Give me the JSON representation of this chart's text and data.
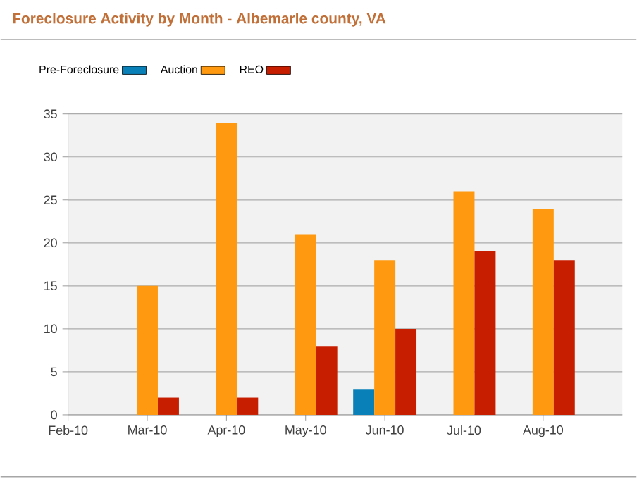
{
  "chart_data": {
    "type": "bar",
    "title": "Foreclosure Activity by Month - Albemarle county, VA",
    "categories": [
      "Feb-10",
      "Mar-10",
      "Apr-10",
      "May-10",
      "Jun-10",
      "Jul-10",
      "Aug-10"
    ],
    "series": [
      {
        "name": "Pre-Foreclosure",
        "color": "#0a80b8",
        "values": [
          0,
          0,
          0,
          0,
          3,
          0,
          0
        ]
      },
      {
        "name": "Auction",
        "color": "#ff9a10",
        "values": [
          0,
          15,
          34,
          21,
          18,
          26,
          24
        ]
      },
      {
        "name": "REO",
        "color": "#c81e00",
        "values": [
          0,
          2,
          2,
          8,
          10,
          19,
          18
        ]
      }
    ],
    "ylim": [
      0,
      35
    ],
    "yticks": [
      0,
      5,
      10,
      15,
      20,
      25,
      30,
      35
    ],
    "grid": "y",
    "legend": "top left"
  }
}
